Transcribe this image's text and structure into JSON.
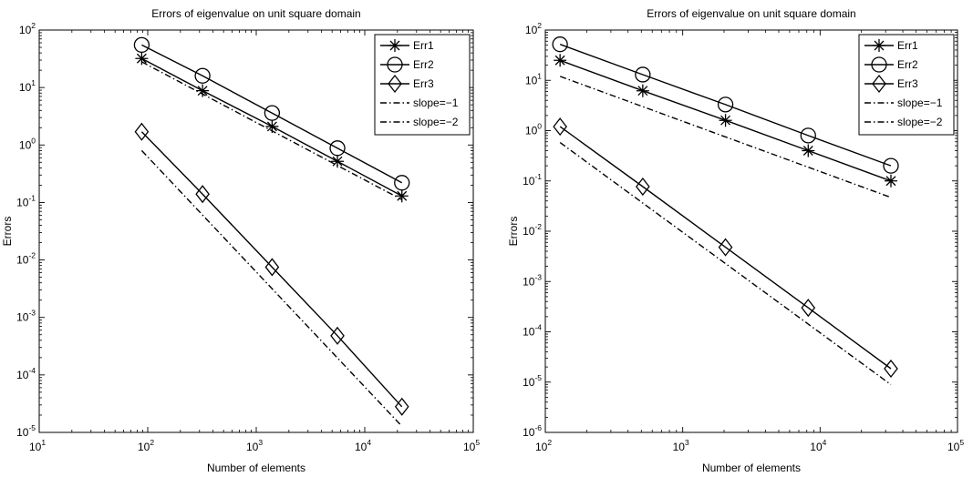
{
  "chart_data": [
    {
      "type": "line",
      "title": "Errors of eigenvalue on unit square domain",
      "xlabel": "Number of elements",
      "ylabel": "Errors",
      "xscale": "log",
      "yscale": "log",
      "xlim": [
        10,
        100000
      ],
      "ylim": [
        1e-05,
        100
      ],
      "xticks": [
        {
          "value": 10,
          "base": "10",
          "exp": "1"
        },
        {
          "value": 100,
          "base": "10",
          "exp": "2"
        },
        {
          "value": 1000,
          "base": "10",
          "exp": "3"
        },
        {
          "value": 10000,
          "base": "10",
          "exp": "4"
        },
        {
          "value": 100000,
          "base": "10",
          "exp": "5"
        }
      ],
      "yticks": [
        {
          "value": 1e-05,
          "base": "10",
          "exp": "-5"
        },
        {
          "value": 0.0001,
          "base": "10",
          "exp": "-4"
        },
        {
          "value": 0.001,
          "base": "10",
          "exp": "-3"
        },
        {
          "value": 0.01,
          "base": "10",
          "exp": "-2"
        },
        {
          "value": 0.1,
          "base": "10",
          "exp": "-1"
        },
        {
          "value": 1,
          "base": "10",
          "exp": "0"
        },
        {
          "value": 10,
          "base": "10",
          "exp": "1"
        },
        {
          "value": 100,
          "base": "10",
          "exp": "2"
        }
      ],
      "legend_position": "top-right",
      "grid": false,
      "series": [
        {
          "name": "Err1",
          "marker": "star",
          "dash": "solid",
          "x": [
            88,
            320,
            1400,
            5600,
            22000
          ],
          "y": [
            32,
            8.8,
            2.1,
            0.52,
            0.13
          ]
        },
        {
          "name": "Err2",
          "marker": "circle",
          "dash": "solid",
          "x": [
            88,
            320,
            1400,
            5600,
            22000
          ],
          "y": [
            55,
            16,
            3.6,
            0.88,
            0.22
          ]
        },
        {
          "name": "Err3",
          "marker": "diamond",
          "dash": "solid",
          "x": [
            88,
            320,
            1400,
            5600,
            22000
          ],
          "y": [
            1.7,
            0.14,
            0.0075,
            0.00048,
            2.8e-05
          ]
        },
        {
          "name": "slope=−1",
          "marker": "none",
          "dash": "dashdot",
          "x": [
            88,
            22000
          ],
          "y": [
            28,
            0.112
          ]
        },
        {
          "name": "slope=−2",
          "marker": "none",
          "dash": "dashdot",
          "x": [
            88,
            22000
          ],
          "y": [
            0.8,
            1.28e-05
          ]
        }
      ]
    },
    {
      "type": "line",
      "title": "Errors of eigenvalue on unit square domain",
      "xlabel": "Number of elements",
      "ylabel": "Errors",
      "xscale": "log",
      "yscale": "log",
      "xlim": [
        100,
        100000
      ],
      "ylim": [
        1e-06,
        100
      ],
      "xticks": [
        {
          "value": 100,
          "base": "10",
          "exp": "2"
        },
        {
          "value": 1000,
          "base": "10",
          "exp": "3"
        },
        {
          "value": 10000,
          "base": "10",
          "exp": "4"
        },
        {
          "value": 100000,
          "base": "10",
          "exp": "5"
        }
      ],
      "yticks": [
        {
          "value": 1e-06,
          "base": "10",
          "exp": "-6"
        },
        {
          "value": 1e-05,
          "base": "10",
          "exp": "-5"
        },
        {
          "value": 0.0001,
          "base": "10",
          "exp": "-4"
        },
        {
          "value": 0.001,
          "base": "10",
          "exp": "-3"
        },
        {
          "value": 0.01,
          "base": "10",
          "exp": "-2"
        },
        {
          "value": 0.1,
          "base": "10",
          "exp": "-1"
        },
        {
          "value": 1,
          "base": "10",
          "exp": "0"
        },
        {
          "value": 10,
          "base": "10",
          "exp": "1"
        },
        {
          "value": 100,
          "base": "10",
          "exp": "2"
        }
      ],
      "legend_position": "top-right",
      "grid": false,
      "series": [
        {
          "name": "Err1",
          "marker": "star",
          "dash": "solid",
          "x": [
            128,
            512,
            2048,
            8192,
            32768
          ],
          "y": [
            25,
            6.2,
            1.6,
            0.4,
            0.1
          ]
        },
        {
          "name": "Err2",
          "marker": "circle",
          "dash": "solid",
          "x": [
            128,
            512,
            2048,
            8192,
            32768
          ],
          "y": [
            52,
            13,
            3.3,
            0.8,
            0.2
          ]
        },
        {
          "name": "Err3",
          "marker": "diamond",
          "dash": "solid",
          "x": [
            128,
            512,
            2048,
            8192,
            32768
          ],
          "y": [
            1.2,
            0.077,
            0.0048,
            0.0003,
            1.85e-05
          ]
        },
        {
          "name": "slope=−1",
          "marker": "none",
          "dash": "dashdot",
          "x": [
            128,
            32768
          ],
          "y": [
            12,
            0.047
          ]
        },
        {
          "name": "slope=−2",
          "marker": "none",
          "dash": "dashdot",
          "x": [
            128,
            32768
          ],
          "y": [
            0.58,
            8.9e-06
          ]
        }
      ]
    }
  ]
}
